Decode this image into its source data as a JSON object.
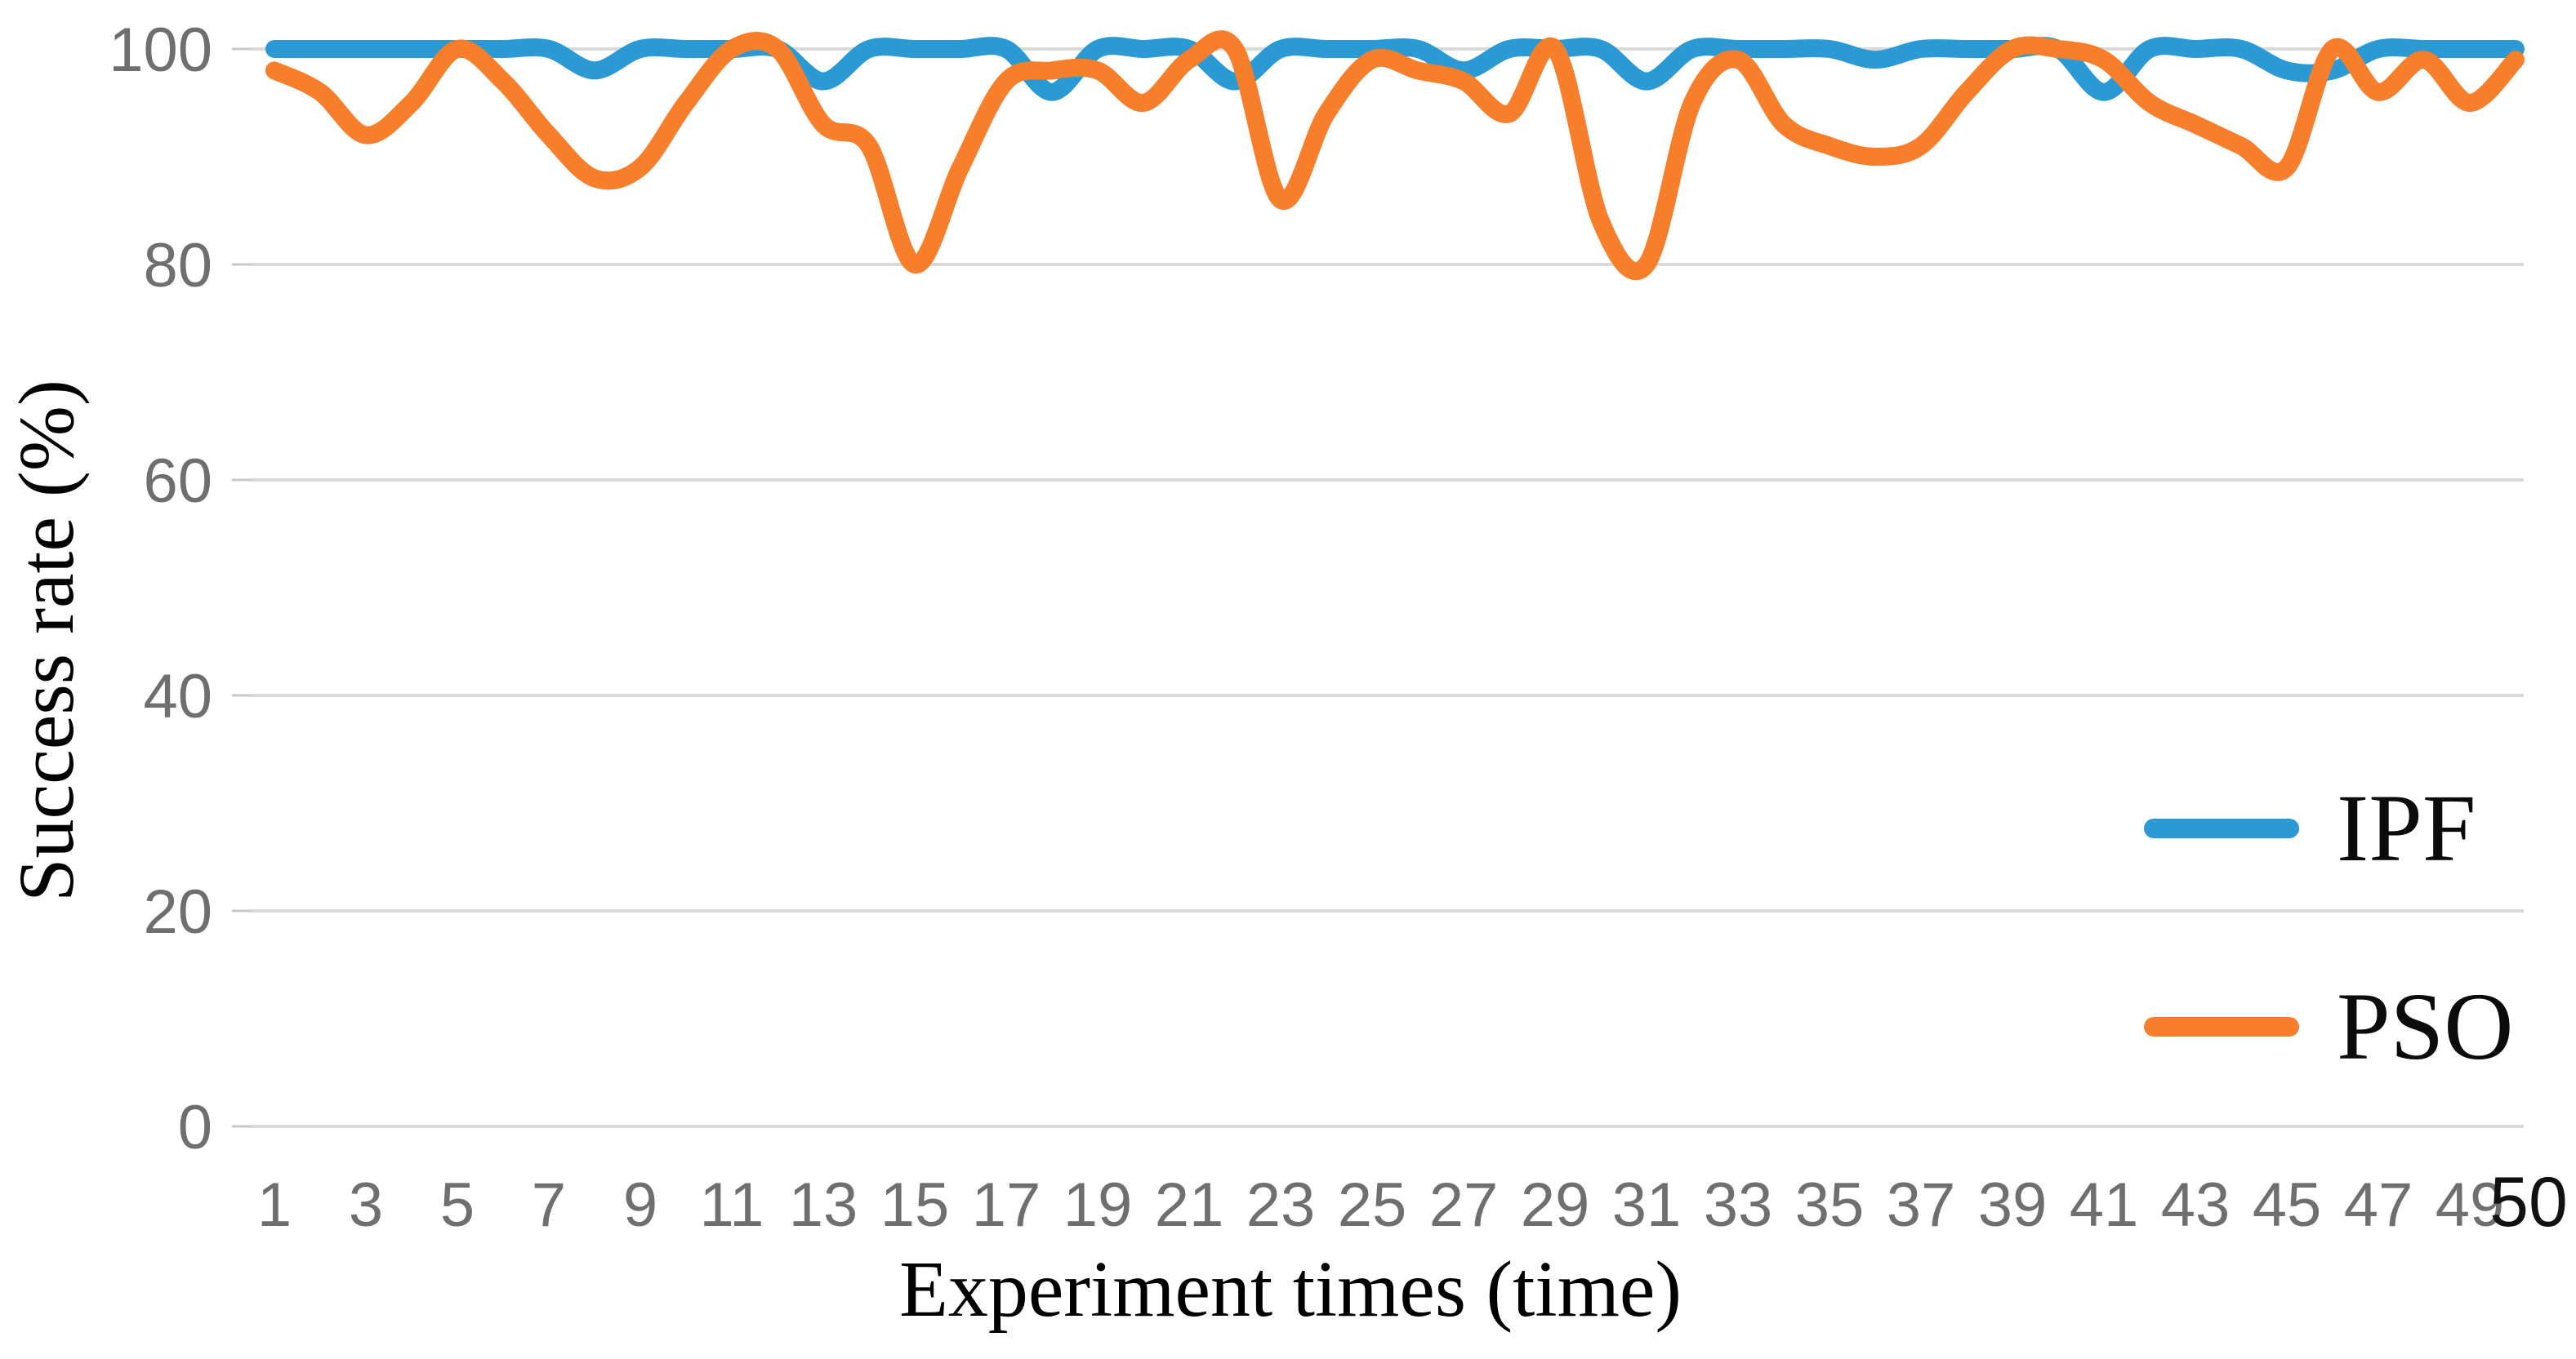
{
  "figure": {
    "kind": "line-chart-figure",
    "background": "#ffffff"
  },
  "chart_data": {
    "type": "line",
    "title": "",
    "xlabel": "Experiment times (time)",
    "ylabel": "Success rate (%)",
    "xlim": [
      1,
      50
    ],
    "ylim": [
      0,
      100
    ],
    "grid": "horizontal-only",
    "gridline_color": "#D9D9D9",
    "tick_label_color": "#6F6F6F",
    "end_label_color": "#111111",
    "smoothed": true,
    "legend_position": "inside-right",
    "y_ticks": [
      100,
      80,
      60,
      40,
      20,
      0
    ],
    "x_tick_labels": [
      "1",
      "3",
      "5",
      "7",
      "9",
      "11",
      "13",
      "15",
      "17",
      "19",
      "21",
      "23",
      "25",
      "27",
      "29",
      "31",
      "33",
      "35",
      "37",
      "39",
      "41",
      "43",
      "45",
      "47",
      "49"
    ],
    "x_tick_values": [
      1,
      3,
      5,
      7,
      9,
      11,
      13,
      15,
      17,
      19,
      21,
      23,
      25,
      27,
      29,
      31,
      33,
      35,
      37,
      39,
      41,
      43,
      45,
      47,
      49
    ],
    "x_end_label": "50",
    "x": [
      1,
      2,
      3,
      4,
      5,
      6,
      7,
      8,
      9,
      10,
      11,
      12,
      13,
      14,
      15,
      16,
      17,
      18,
      19,
      20,
      21,
      22,
      23,
      24,
      25,
      26,
      27,
      28,
      29,
      30,
      31,
      32,
      33,
      34,
      35,
      36,
      37,
      38,
      39,
      40,
      41,
      42,
      43,
      44,
      45,
      46,
      47,
      48,
      49,
      50
    ],
    "series": [
      {
        "name": "IPF",
        "color": "#2B9AD4",
        "values": [
          100,
          100,
          100,
          100,
          100,
          100,
          100,
          98,
          100,
          100,
          100,
          100,
          97,
          100,
          100,
          100,
          100,
          96,
          100,
          100,
          100,
          97,
          100,
          100,
          100,
          100,
          98,
          100,
          100,
          100,
          97,
          100,
          100,
          100,
          100,
          99,
          100,
          100,
          100,
          100,
          96,
          100,
          100,
          100,
          98,
          98,
          100,
          100,
          100,
          100
        ]
      },
      {
        "name": "PSO",
        "color": "#F77F2C",
        "values": [
          98,
          96,
          92,
          95,
          100,
          97,
          92,
          88,
          89,
          95,
          100,
          100,
          93,
          91,
          80,
          89,
          97,
          98,
          98,
          95,
          99,
          100,
          86,
          94,
          99,
          98,
          97,
          94,
          100,
          84,
          80,
          95,
          99,
          93,
          91,
          90,
          91,
          96,
          100,
          100,
          99,
          95,
          93,
          91,
          89,
          100,
          96,
          99,
          95,
          99
        ]
      }
    ]
  }
}
